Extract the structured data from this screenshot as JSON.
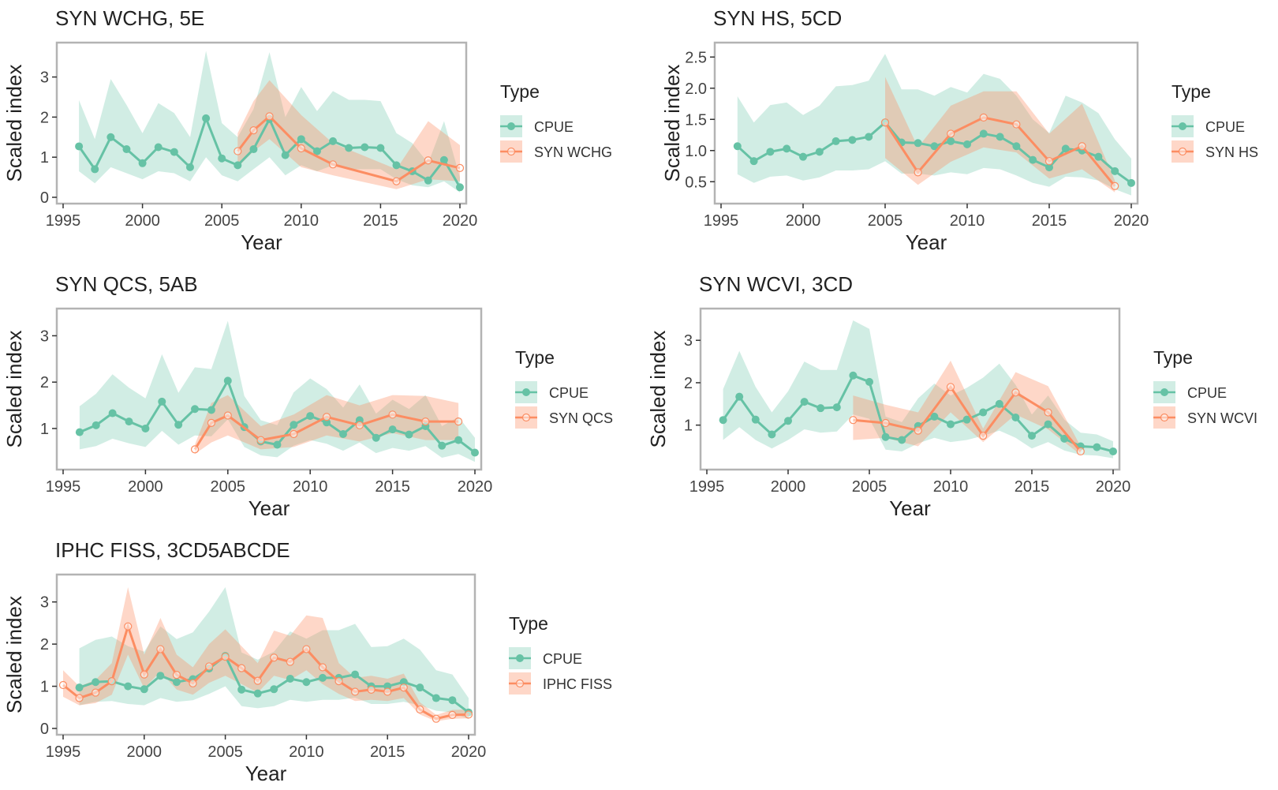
{
  "figure": {
    "ylabel": "Scaled index",
    "xlabel": "Year",
    "legend_title": "Type",
    "colors": {
      "cpue": "#66c2a5",
      "survey": "#fc8d62",
      "frame": "#b3b3b3"
    }
  },
  "chart_data": [
    {
      "type": "line",
      "title": "SYN WCHG, 5E",
      "xlabel": "Year",
      "ylabel": "Scaled index",
      "xlim": [
        1995,
        2020
      ],
      "ylim": [
        0,
        3.7
      ],
      "xticks": [
        1995,
        2000,
        2005,
        2010,
        2015,
        2020
      ],
      "yticks": [
        0,
        1,
        2,
        3
      ],
      "legend": "right",
      "series": [
        {
          "name": "CPUE",
          "x": [
            1996,
            1997,
            1998,
            1999,
            2000,
            2001,
            2002,
            2003,
            2004,
            2005,
            2006,
            2007,
            2008,
            2009,
            2010,
            2011,
            2012,
            2013,
            2014,
            2015,
            2016,
            2017,
            2018,
            2019,
            2020
          ],
          "y": [
            1.27,
            0.7,
            1.5,
            1.2,
            0.85,
            1.25,
            1.13,
            0.75,
            1.97,
            0.97,
            0.8,
            1.2,
            1.95,
            1.05,
            1.45,
            1.15,
            1.4,
            1.23,
            1.25,
            1.23,
            0.8,
            0.65,
            0.42,
            0.93,
            0.25
          ],
          "lower": [
            0.65,
            0.35,
            0.75,
            0.6,
            0.45,
            0.65,
            0.6,
            0.4,
            1.0,
            0.55,
            0.4,
            0.7,
            1.0,
            0.55,
            0.8,
            0.65,
            0.8,
            0.7,
            0.7,
            0.7,
            0.45,
            0.3,
            0.25,
            0.4,
            0.12
          ],
          "upper": [
            2.42,
            1.45,
            2.95,
            2.3,
            1.6,
            2.35,
            2.1,
            1.5,
            3.65,
            1.85,
            1.5,
            2.2,
            3.62,
            2.0,
            2.75,
            2.15,
            2.65,
            2.43,
            2.43,
            2.4,
            1.6,
            1.35,
            0.85,
            1.9,
            0.5
          ]
        },
        {
          "name": "SYN WCHG",
          "x": [
            2006,
            2007,
            2008,
            2010,
            2012,
            2016,
            2018,
            2020
          ],
          "y": [
            1.15,
            1.67,
            2.02,
            1.22,
            0.82,
            0.4,
            0.92,
            0.73
          ],
          "lower": [
            0.75,
            1.15,
            1.45,
            0.75,
            0.55,
            0.2,
            0.45,
            0.4
          ],
          "upper": [
            1.6,
            2.4,
            2.92,
            2.05,
            1.35,
            0.7,
            1.9,
            1.3
          ]
        }
      ]
    },
    {
      "type": "line",
      "title": "SYN HS, 5CD",
      "xlabel": "Year",
      "ylabel": "Scaled index",
      "xlim": [
        1995,
        2020
      ],
      "ylim": [
        0.25,
        2.63
      ],
      "xticks": [
        1995,
        2000,
        2005,
        2010,
        2015,
        2020
      ],
      "yticks": [
        0.5,
        1.0,
        1.5,
        2.0,
        2.5
      ],
      "legend": "right",
      "series": [
        {
          "name": "CPUE",
          "x": [
            1996,
            1997,
            1998,
            1999,
            2000,
            2001,
            2002,
            2003,
            2004,
            2005,
            2006,
            2007,
            2008,
            2009,
            2010,
            2011,
            2012,
            2013,
            2014,
            2015,
            2016,
            2017,
            2018,
            2019,
            2020
          ],
          "y": [
            1.07,
            0.83,
            0.98,
            1.03,
            0.9,
            0.98,
            1.15,
            1.17,
            1.22,
            1.45,
            1.13,
            1.12,
            1.07,
            1.15,
            1.1,
            1.27,
            1.22,
            1.07,
            0.85,
            0.73,
            1.03,
            1.0,
            0.9,
            0.67,
            0.48
          ],
          "lower": [
            0.62,
            0.48,
            0.58,
            0.6,
            0.52,
            0.57,
            0.68,
            0.68,
            0.7,
            0.83,
            0.63,
            0.63,
            0.6,
            0.65,
            0.62,
            0.72,
            0.7,
            0.6,
            0.48,
            0.42,
            0.58,
            0.57,
            0.52,
            0.38,
            0.28
          ],
          "upper": [
            1.87,
            1.45,
            1.73,
            1.77,
            1.57,
            1.72,
            2.03,
            2.05,
            2.12,
            2.55,
            1.98,
            1.98,
            1.88,
            2.02,
            1.93,
            2.23,
            2.15,
            1.88,
            1.5,
            1.28,
            1.88,
            1.77,
            1.6,
            1.18,
            0.87
          ]
        },
        {
          "name": "SYN HS",
          "x": [
            2005,
            2007,
            2009,
            2011,
            2013,
            2015,
            2017,
            2019
          ],
          "y": [
            1.45,
            0.65,
            1.27,
            1.53,
            1.42,
            0.83,
            1.07,
            0.43
          ],
          "lower": [
            0.88,
            0.45,
            0.82,
            1.05,
            0.97,
            0.55,
            0.7,
            0.33
          ],
          "upper": [
            2.18,
            1.05,
            1.72,
            1.95,
            1.95,
            1.27,
            1.75,
            0.52
          ]
        }
      ]
    },
    {
      "type": "line",
      "title": "SYN QCS, 5AB",
      "xlabel": "Year",
      "ylabel": "Scaled index",
      "xlim": [
        1995,
        2020
      ],
      "ylim": [
        0.25,
        3.45
      ],
      "xticks": [
        1995,
        2000,
        2005,
        2010,
        2015,
        2020
      ],
      "yticks": [
        1,
        2,
        3
      ],
      "legend": "right",
      "series": [
        {
          "name": "CPUE",
          "x": [
            1996,
            1997,
            1998,
            1999,
            2000,
            2001,
            2002,
            2003,
            2004,
            2005,
            2006,
            2007,
            2008,
            2009,
            2010,
            2011,
            2012,
            2013,
            2014,
            2015,
            2016,
            2017,
            2018,
            2019,
            2020
          ],
          "y": [
            0.92,
            1.07,
            1.33,
            1.15,
            1.0,
            1.58,
            1.08,
            1.42,
            1.4,
            2.03,
            1.03,
            0.72,
            0.65,
            1.08,
            1.27,
            1.13,
            0.88,
            1.18,
            0.8,
            0.98,
            0.87,
            1.05,
            0.63,
            0.75,
            0.48
          ],
          "lower": [
            0.55,
            0.62,
            0.78,
            0.68,
            0.6,
            0.95,
            0.65,
            0.85,
            0.83,
            1.2,
            0.6,
            0.42,
            0.38,
            0.63,
            0.75,
            0.67,
            0.52,
            0.7,
            0.47,
            0.58,
            0.52,
            0.62,
            0.37,
            0.45,
            0.28
          ],
          "upper": [
            1.48,
            1.75,
            2.17,
            1.88,
            1.65,
            2.6,
            1.77,
            2.32,
            2.28,
            3.32,
            1.7,
            1.18,
            1.07,
            1.78,
            2.08,
            1.85,
            1.45,
            1.95,
            1.32,
            1.62,
            1.42,
            1.72,
            1.05,
            1.25,
            0.8
          ]
        },
        {
          "name": "SYN QCS",
          "x": [
            2003,
            2004,
            2005,
            2007,
            2009,
            2011,
            2013,
            2015,
            2017,
            2019
          ],
          "y": [
            0.55,
            1.12,
            1.28,
            0.75,
            0.88,
            1.25,
            1.07,
            1.3,
            1.15,
            1.15
          ],
          "lower": [
            0.45,
            0.7,
            0.85,
            0.55,
            0.6,
            0.85,
            0.72,
            0.9,
            0.75,
            0.75
          ],
          "upper": [
            0.65,
            1.55,
            1.72,
            1.05,
            1.3,
            1.72,
            1.5,
            1.72,
            1.7,
            1.55
          ]
        }
      ]
    },
    {
      "type": "line",
      "title": "SYN WCVI, 3CD",
      "xlabel": "Year",
      "ylabel": "Scaled index",
      "xlim": [
        1995,
        2020
      ],
      "ylim": [
        0.1,
        3.6
      ],
      "xticks": [
        1995,
        2000,
        2005,
        2010,
        2015,
        2020
      ],
      "yticks": [
        1,
        2,
        3
      ],
      "legend": "right",
      "series": [
        {
          "name": "CPUE",
          "x": [
            1996,
            1997,
            1998,
            1999,
            2000,
            2001,
            2002,
            2003,
            2004,
            2005,
            2006,
            2007,
            2008,
            2009,
            2010,
            2011,
            2012,
            2013,
            2014,
            2015,
            2016,
            2017,
            2018,
            2019,
            2020
          ],
          "y": [
            1.12,
            1.67,
            1.13,
            0.78,
            1.1,
            1.55,
            1.4,
            1.42,
            2.17,
            2.02,
            0.72,
            0.65,
            0.98,
            1.2,
            1.02,
            1.13,
            1.3,
            1.5,
            1.18,
            0.75,
            1.02,
            0.68,
            0.5,
            0.48,
            0.38
          ],
          "lower": [
            0.65,
            0.95,
            0.65,
            0.45,
            0.65,
            0.9,
            0.82,
            0.85,
            1.25,
            1.15,
            0.42,
            0.38,
            0.57,
            0.7,
            0.6,
            0.65,
            0.75,
            0.87,
            0.7,
            0.45,
            0.6,
            0.4,
            0.3,
            0.28,
            0.22
          ],
          "upper": [
            1.85,
            2.75,
            1.9,
            1.3,
            1.8,
            2.5,
            2.3,
            2.3,
            3.47,
            3.27,
            1.2,
            1.07,
            1.63,
            1.98,
            1.7,
            1.88,
            2.12,
            2.45,
            1.95,
            1.25,
            1.7,
            1.13,
            0.82,
            0.78,
            0.62
          ]
        },
        {
          "name": "SYN WCVI",
          "x": [
            2004,
            2006,
            2008,
            2010,
            2012,
            2014,
            2016,
            2018
          ],
          "y": [
            1.12,
            1.05,
            0.87,
            1.9,
            0.75,
            1.77,
            1.3,
            0.38
          ],
          "lower": [
            0.65,
            0.7,
            0.5,
            1.3,
            0.6,
            1.25,
            0.9,
            0.3
          ],
          "upper": [
            1.7,
            1.48,
            1.3,
            2.52,
            0.92,
            2.25,
            1.92,
            0.5
          ]
        }
      ]
    },
    {
      "type": "line",
      "title": "IPHC FISS, 3CD5ABCDE",
      "xlabel": "Year",
      "ylabel": "Scaled index",
      "xlim": [
        1995,
        2020
      ],
      "ylim": [
        0,
        3.5
      ],
      "xticks": [
        1995,
        2000,
        2005,
        2010,
        2015,
        2020
      ],
      "yticks": [
        0,
        1,
        2,
        3
      ],
      "legend": "right",
      "series": [
        {
          "name": "CPUE",
          "x": [
            1996,
            1997,
            1998,
            1999,
            2000,
            2001,
            2002,
            2003,
            2004,
            2005,
            2006,
            2007,
            2008,
            2009,
            2010,
            2011,
            2012,
            2013,
            2014,
            2015,
            2016,
            2017,
            2018,
            2019,
            2020
          ],
          "y": [
            0.97,
            1.1,
            1.12,
            1.0,
            0.93,
            1.25,
            1.1,
            1.17,
            1.42,
            1.72,
            0.92,
            0.83,
            0.93,
            1.18,
            1.1,
            1.2,
            1.2,
            1.28,
            1.0,
            1.0,
            1.1,
            0.97,
            0.72,
            0.67,
            0.38
          ],
          "lower": [
            0.55,
            0.63,
            0.65,
            0.58,
            0.55,
            0.72,
            0.63,
            0.67,
            0.82,
            1.0,
            0.53,
            0.48,
            0.53,
            0.68,
            0.63,
            0.68,
            0.68,
            0.73,
            0.58,
            0.58,
            0.63,
            0.55,
            0.42,
            0.38,
            0.22
          ],
          "upper": [
            1.9,
            2.1,
            2.18,
            1.95,
            1.82,
            2.42,
            2.12,
            2.28,
            2.77,
            3.35,
            1.8,
            1.63,
            1.82,
            2.3,
            2.13,
            2.33,
            2.33,
            2.48,
            1.93,
            1.95,
            2.13,
            1.87,
            1.38,
            1.28,
            0.72
          ]
        },
        {
          "name": "IPHC FISS",
          "x": [
            1995,
            1996,
            1997,
            1998,
            1999,
            2000,
            2001,
            2002,
            2003,
            2004,
            2005,
            2006,
            2007,
            2008,
            2009,
            2010,
            2011,
            2012,
            2013,
            2014,
            2015,
            2016,
            2017,
            2018,
            2019,
            2020
          ],
          "y": [
            1.03,
            0.72,
            0.85,
            1.12,
            2.42,
            1.28,
            1.88,
            1.27,
            1.07,
            1.47,
            1.7,
            1.43,
            1.13,
            1.68,
            1.58,
            1.88,
            1.45,
            1.12,
            0.87,
            0.92,
            0.87,
            0.97,
            0.45,
            0.23,
            0.32,
            0.33
          ],
          "lower": [
            0.75,
            0.55,
            0.6,
            0.8,
            1.75,
            0.95,
            1.35,
            0.92,
            0.8,
            1.08,
            1.25,
            1.05,
            0.85,
            1.25,
            1.15,
            1.38,
            1.05,
            0.82,
            0.65,
            0.68,
            0.65,
            0.72,
            0.33,
            0.17,
            0.23,
            0.24
          ],
          "upper": [
            1.38,
            1.0,
            1.15,
            1.55,
            3.35,
            1.75,
            2.62,
            1.75,
            1.45,
            2.0,
            2.35,
            1.95,
            1.55,
            2.32,
            2.2,
            2.68,
            2.62,
            1.55,
            1.2,
            1.25,
            1.18,
            1.3,
            0.62,
            0.32,
            0.44,
            0.45
          ]
        }
      ]
    }
  ]
}
